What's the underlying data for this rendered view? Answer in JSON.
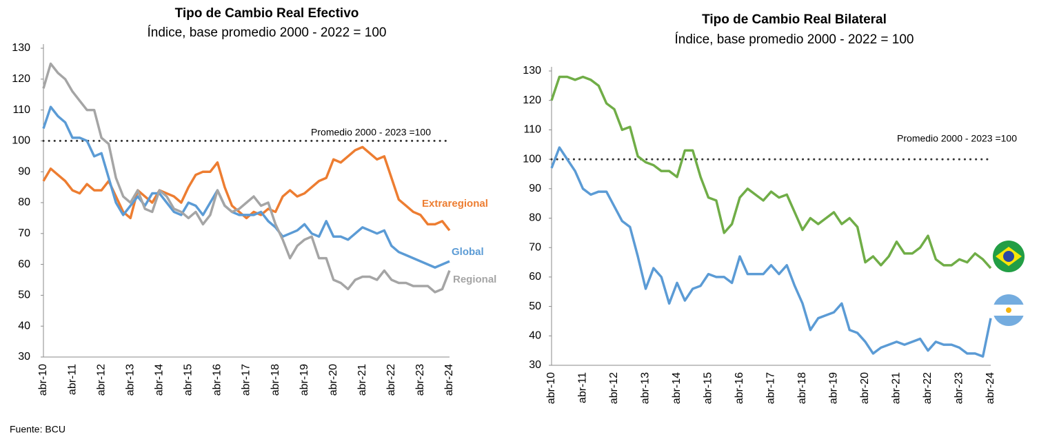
{
  "chart_data": [
    {
      "type": "line",
      "title": "Tipo de Cambio Real Efectivo",
      "subtitle": "Índice, base promedio 2000 - 2022 = 100",
      "categories": [
        "abr-10",
        null,
        null,
        null,
        "abr-11",
        null,
        null,
        null,
        "abr-12",
        null,
        null,
        null,
        "abr-13",
        null,
        null,
        null,
        "abr-14",
        null,
        null,
        null,
        "abr-15",
        null,
        null,
        null,
        "abr-16",
        null,
        null,
        null,
        "abr-17",
        null,
        null,
        null,
        "abr-18",
        null,
        null,
        null,
        "abr-19",
        null,
        null,
        null,
        "abr-20",
        null,
        null,
        null,
        "abr-21",
        null,
        null,
        null,
        "abr-22",
        null,
        null,
        null,
        "abr-23",
        null,
        null,
        null,
        "abr-24"
      ],
      "series": [
        {
          "name": "Extraregional",
          "color": "#ED7D31",
          "values": [
            87,
            91,
            89,
            87,
            84,
            83,
            86,
            84,
            84,
            87,
            82,
            77,
            75,
            84,
            82,
            80,
            84,
            83,
            82,
            80,
            85,
            89,
            90,
            90,
            93,
            85,
            79,
            77,
            75,
            77,
            76,
            78,
            77,
            82,
            84,
            82,
            83,
            85,
            87,
            88,
            94,
            93,
            95,
            97,
            98,
            96,
            94,
            95,
            88,
            81,
            79,
            77,
            76,
            73,
            73,
            74,
            71
          ]
        },
        {
          "name": "Global",
          "color": "#5B9BD5",
          "values": [
            104,
            111,
            108,
            106,
            101,
            101,
            100,
            95,
            96,
            88,
            80,
            76,
            79,
            82,
            79,
            83,
            83,
            80,
            77,
            76,
            80,
            79,
            76,
            80,
            84,
            79,
            77,
            76,
            76,
            76,
            77,
            74,
            72,
            69,
            70,
            71,
            73,
            70,
            69,
            74,
            69,
            69,
            68,
            70,
            72,
            71,
            70,
            71,
            66,
            64,
            63,
            62,
            61,
            60,
            59,
            60,
            61
          ]
        },
        {
          "name": "Regional",
          "color": "#A5A5A5",
          "values": [
            117,
            125,
            122,
            120,
            116,
            113,
            110,
            110,
            101,
            99,
            88,
            82,
            80,
            84,
            78,
            77,
            84,
            82,
            78,
            77,
            75,
            77,
            73,
            76,
            84,
            79,
            77,
            78,
            80,
            82,
            79,
            80,
            73,
            68,
            62,
            66,
            68,
            69,
            62,
            62,
            55,
            54,
            52,
            55,
            56,
            56,
            55,
            58,
            55,
            54,
            54,
            53,
            53,
            53,
            51,
            52,
            58
          ]
        }
      ],
      "ylim": [
        30,
        130
      ],
      "yticks": [
        30,
        40,
        50,
        60,
        70,
        80,
        90,
        100,
        110,
        120,
        130
      ],
      "reference": {
        "value": 100,
        "label": "Promedio 2000 - 2023 =100"
      }
    },
    {
      "type": "line",
      "title": "Tipo de Cambio Real Bilateral",
      "subtitle": "Índice, base promedio 2000 - 2022 = 100",
      "categories": [
        "abr-10",
        null,
        null,
        null,
        "abr-11",
        null,
        null,
        null,
        "abr-12",
        null,
        null,
        null,
        "abr-13",
        null,
        null,
        null,
        "abr-14",
        null,
        null,
        null,
        "abr-15",
        null,
        null,
        null,
        "abr-16",
        null,
        null,
        null,
        "abr-17",
        null,
        null,
        null,
        "abr-18",
        null,
        null,
        null,
        "abr-19",
        null,
        null,
        null,
        "abr-20",
        null,
        null,
        null,
        "abr-21",
        null,
        null,
        null,
        "abr-22",
        null,
        null,
        null,
        "abr-23",
        null,
        null,
        null,
        "abr-24"
      ],
      "series": [
        {
          "color": "#70AD47",
          "values": [
            120,
            128,
            128,
            127,
            128,
            127,
            125,
            119,
            117,
            110,
            111,
            101,
            99,
            98,
            96,
            96,
            94,
            103,
            103,
            94,
            87,
            86,
            75,
            78,
            87,
            90,
            88,
            86,
            89,
            87,
            88,
            82,
            76,
            80,
            78,
            80,
            82,
            78,
            80,
            77,
            65,
            67,
            64,
            67,
            72,
            68,
            68,
            70,
            74,
            66,
            64,
            64,
            66,
            65,
            68,
            66,
            63
          ]
        },
        {
          "color": "#5B9BD5",
          "values": [
            97,
            104,
            100,
            96,
            90,
            88,
            89,
            89,
            84,
            79,
            77,
            67,
            56,
            63,
            60,
            51,
            58,
            52,
            56,
            57,
            61,
            60,
            60,
            58,
            67,
            61,
            61,
            61,
            64,
            61,
            64,
            57,
            51,
            42,
            46,
            47,
            48,
            51,
            42,
            41,
            38,
            34,
            36,
            37,
            38,
            37,
            38,
            39,
            35,
            38,
            37,
            37,
            36,
            34,
            34,
            33,
            46
          ]
        }
      ],
      "ylim": [
        30,
        130
      ],
      "yticks": [
        30,
        40,
        50,
        60,
        70,
        80,
        90,
        100,
        110,
        120,
        130
      ],
      "reference": {
        "value": 100,
        "label": "Promedio 2000 - 2023 =100"
      }
    }
  ],
  "source": "Fuente: BCU"
}
